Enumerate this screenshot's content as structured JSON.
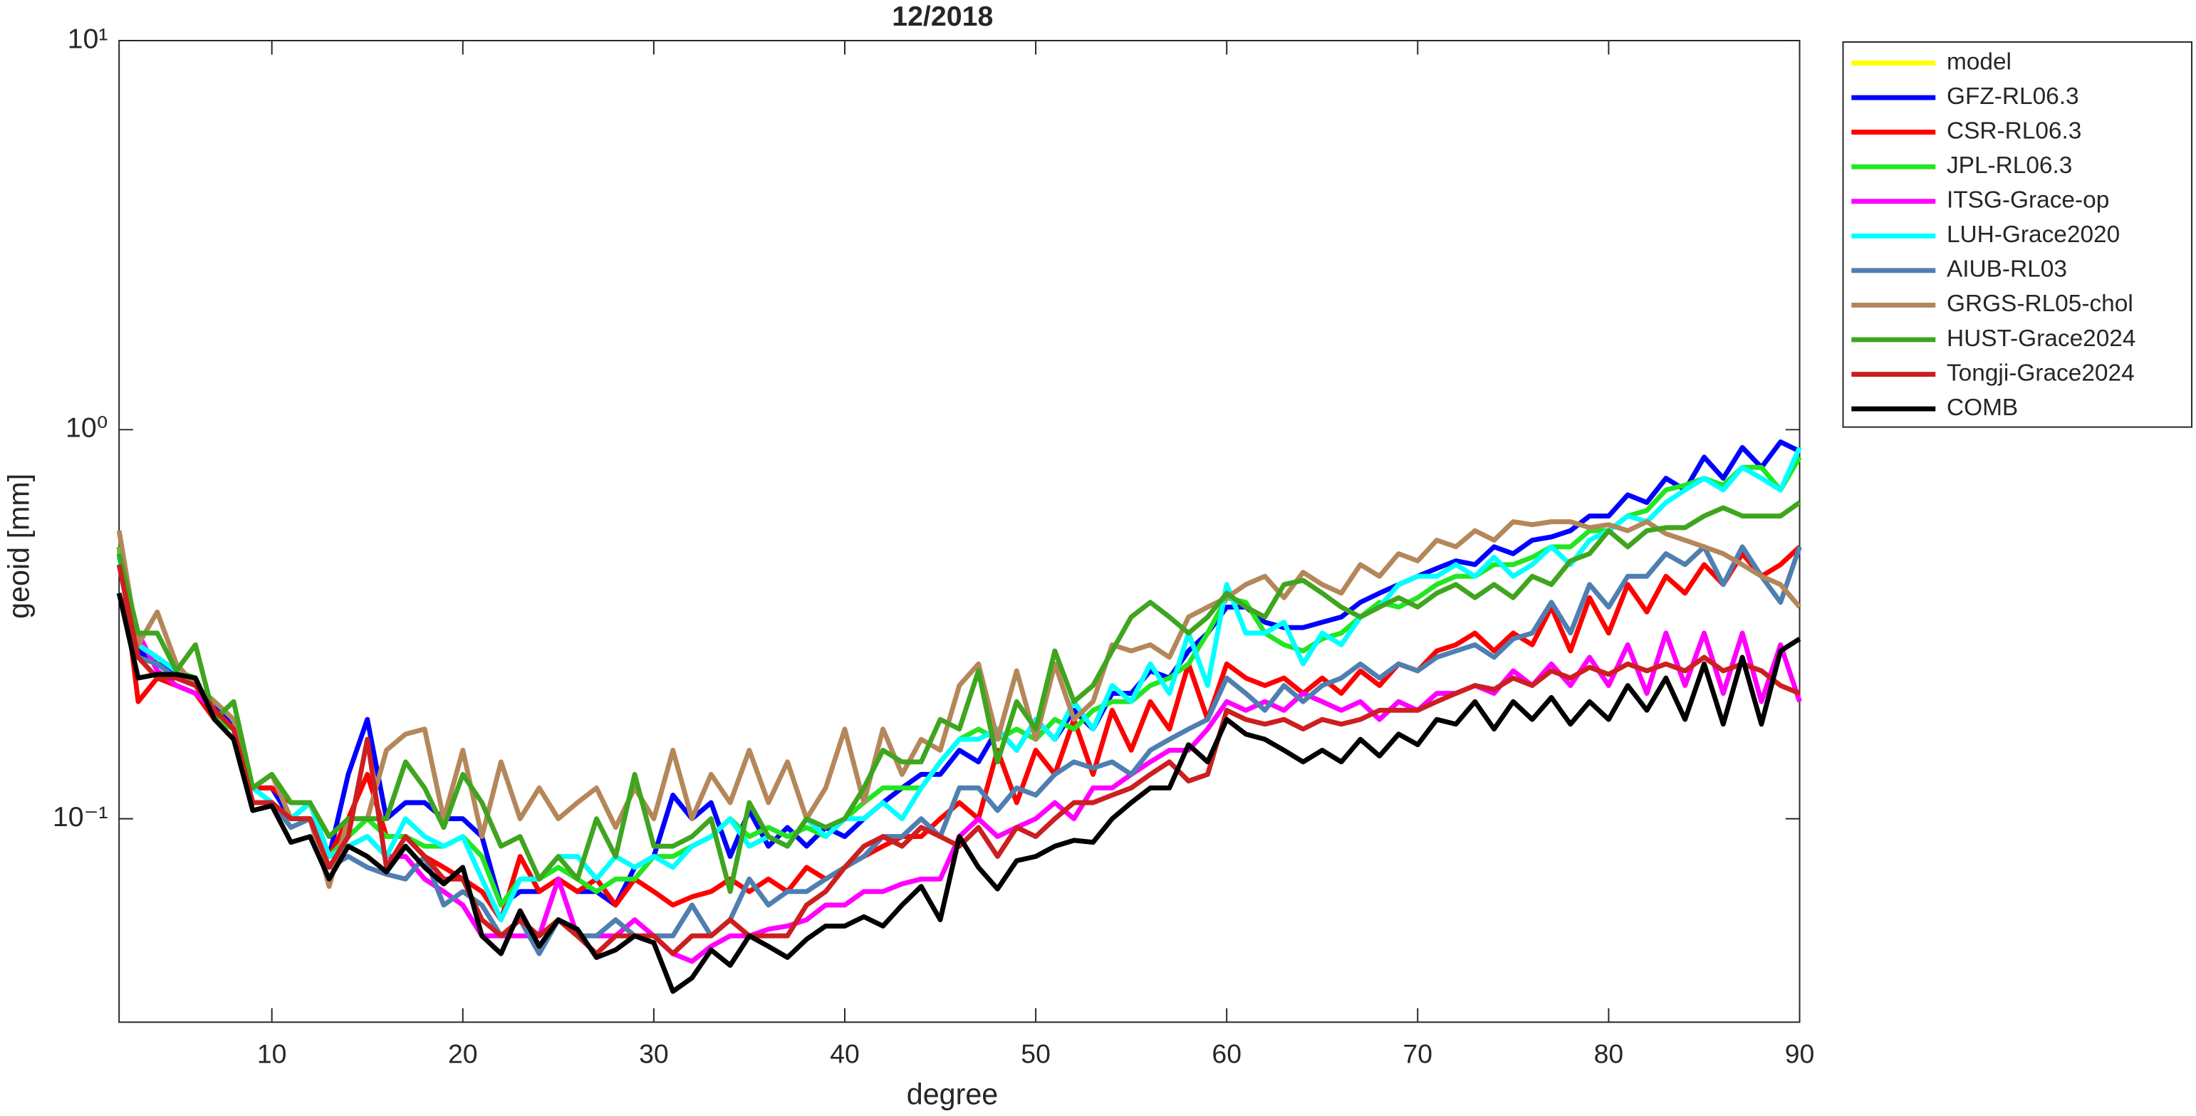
{
  "chart_data": {
    "type": "line",
    "title": "12/2018",
    "xlabel": "degree",
    "ylabel": "geoid [mm]",
    "ylog": true,
    "legend": "outside-top-right",
    "xlim": [
      2,
      90
    ],
    "xticks": [
      10,
      20,
      30,
      40,
      50,
      60,
      70,
      80,
      90
    ],
    "ylim": [
      0.03,
      10
    ],
    "yticks": [
      {
        "value": 0.1,
        "label": "10⁻¹"
      },
      {
        "value": 1,
        "label": "10⁰"
      },
      {
        "value": 10,
        "label": "10¹"
      }
    ],
    "x": [
      2,
      3,
      4,
      5,
      6,
      7,
      8,
      9,
      10,
      11,
      12,
      13,
      14,
      15,
      16,
      17,
      18,
      19,
      20,
      21,
      22,
      23,
      24,
      25,
      26,
      27,
      28,
      29,
      30,
      31,
      32,
      33,
      34,
      35,
      36,
      37,
      38,
      39,
      40,
      41,
      42,
      43,
      44,
      45,
      46,
      47,
      48,
      49,
      50,
      51,
      52,
      53,
      54,
      55,
      56,
      57,
      58,
      59,
      60,
      61,
      62,
      63,
      64,
      65,
      66,
      67,
      68,
      69,
      70,
      71,
      72,
      73,
      74,
      75,
      76,
      77,
      78,
      79,
      80,
      81,
      82,
      83,
      84,
      85,
      86,
      87,
      88,
      89,
      90
    ],
    "series": [
      {
        "name": "model",
        "color": "#ffff00",
        "values": [
          null,
          null,
          null,
          null,
          null,
          null,
          null,
          null,
          null,
          null,
          null,
          null,
          null,
          null,
          null,
          null,
          null,
          null,
          null,
          null,
          null,
          null,
          null,
          null,
          null,
          null,
          null,
          null,
          null,
          null,
          null,
          null,
          null,
          null,
          null,
          null,
          null,
          null,
          null,
          null,
          null,
          null,
          null,
          null,
          null,
          null,
          null,
          null,
          null,
          null,
          null,
          null,
          null,
          null,
          null,
          null,
          null,
          null,
          null,
          null,
          null,
          null,
          null,
          null,
          null,
          null,
          null,
          null,
          null,
          null,
          null,
          null,
          null,
          null,
          null,
          null,
          null,
          null,
          null,
          null,
          null,
          null,
          null,
          null,
          null,
          null,
          null,
          null,
          null
        ]
      },
      {
        "name": "GFZ-RL06.3",
        "color": "#0000ff",
        "values": [
          0.48,
          0.27,
          0.25,
          0.24,
          0.22,
          0.2,
          0.17,
          0.12,
          0.12,
          0.1,
          0.11,
          0.08,
          0.13,
          0.18,
          0.1,
          0.11,
          0.11,
          0.1,
          0.1,
          0.09,
          0.06,
          0.065,
          0.065,
          0.07,
          0.065,
          0.065,
          0.06,
          0.075,
          0.08,
          0.115,
          0.1,
          0.11,
          0.08,
          0.105,
          0.085,
          0.095,
          0.085,
          0.095,
          0.09,
          0.1,
          0.11,
          0.12,
          0.13,
          0.13,
          0.15,
          0.14,
          0.17,
          0.15,
          0.18,
          0.16,
          0.19,
          0.17,
          0.21,
          0.21,
          0.24,
          0.23,
          0.27,
          0.3,
          0.35,
          0.35,
          0.32,
          0.31,
          0.31,
          0.32,
          0.33,
          0.36,
          0.38,
          0.4,
          0.42,
          0.44,
          0.46,
          0.45,
          0.5,
          0.48,
          0.52,
          0.53,
          0.55,
          0.6,
          0.6,
          0.68,
          0.65,
          0.75,
          0.7,
          0.85,
          0.75,
          0.9,
          0.8,
          0.93,
          0.88
        ]
      },
      {
        "name": "CSR-RL06.3",
        "color": "#ff0000",
        "values": [
          0.5,
          0.2,
          0.23,
          0.22,
          0.21,
          0.18,
          0.17,
          0.12,
          0.12,
          0.11,
          0.11,
          0.08,
          0.1,
          0.13,
          0.09,
          0.09,
          0.08,
          0.075,
          0.07,
          0.065,
          0.055,
          0.08,
          0.065,
          0.07,
          0.065,
          0.07,
          0.06,
          0.07,
          0.065,
          0.06,
          0.063,
          0.065,
          0.07,
          0.065,
          0.07,
          0.065,
          0.075,
          0.07,
          0.075,
          0.08,
          0.085,
          0.09,
          0.09,
          0.1,
          0.11,
          0.1,
          0.15,
          0.11,
          0.15,
          0.13,
          0.18,
          0.13,
          0.19,
          0.15,
          0.2,
          0.17,
          0.25,
          0.18,
          0.25,
          0.23,
          0.22,
          0.23,
          0.21,
          0.23,
          0.21,
          0.24,
          0.22,
          0.25,
          0.24,
          0.27,
          0.28,
          0.3,
          0.27,
          0.3,
          0.28,
          0.35,
          0.27,
          0.37,
          0.3,
          0.4,
          0.34,
          0.42,
          0.38,
          0.45,
          0.4,
          0.48,
          0.42,
          0.45,
          0.5
        ]
      },
      {
        "name": "JPL-RL06.3",
        "color": "#22e622",
        "values": [
          0.5,
          0.28,
          0.26,
          0.24,
          0.23,
          0.18,
          0.17,
          0.12,
          0.11,
          0.1,
          0.11,
          0.08,
          0.09,
          0.1,
          0.09,
          0.09,
          0.085,
          0.085,
          0.09,
          0.08,
          0.06,
          0.07,
          0.07,
          0.075,
          0.07,
          0.065,
          0.07,
          0.07,
          0.08,
          0.08,
          0.085,
          0.09,
          0.1,
          0.09,
          0.095,
          0.09,
          0.095,
          0.09,
          0.1,
          0.11,
          0.12,
          0.12,
          0.12,
          0.14,
          0.16,
          0.17,
          0.16,
          0.17,
          0.16,
          0.18,
          0.17,
          0.19,
          0.2,
          0.2,
          0.22,
          0.23,
          0.25,
          0.3,
          0.37,
          0.36,
          0.3,
          0.28,
          0.27,
          0.29,
          0.3,
          0.33,
          0.36,
          0.35,
          0.37,
          0.4,
          0.42,
          0.42,
          0.45,
          0.45,
          0.47,
          0.5,
          0.5,
          0.55,
          0.55,
          0.6,
          0.62,
          0.7,
          0.72,
          0.75,
          0.72,
          0.8,
          0.8,
          0.7,
          0.85
        ]
      },
      {
        "name": "ITSG-Grace-op",
        "color": "#ff00ff",
        "values": [
          0.45,
          0.3,
          0.24,
          0.22,
          0.21,
          0.19,
          0.17,
          0.11,
          0.11,
          0.1,
          0.1,
          0.08,
          0.085,
          0.09,
          0.08,
          0.08,
          0.07,
          0.065,
          0.06,
          0.05,
          0.05,
          0.05,
          0.05,
          0.07,
          0.05,
          0.05,
          0.05,
          0.055,
          0.05,
          0.045,
          0.043,
          0.047,
          0.05,
          0.05,
          0.052,
          0.053,
          0.055,
          0.06,
          0.06,
          0.065,
          0.065,
          0.068,
          0.07,
          0.07,
          0.09,
          0.1,
          0.09,
          0.095,
          0.1,
          0.11,
          0.1,
          0.12,
          0.12,
          0.13,
          0.14,
          0.15,
          0.15,
          0.17,
          0.2,
          0.19,
          0.2,
          0.19,
          0.21,
          0.2,
          0.19,
          0.2,
          0.18,
          0.2,
          0.19,
          0.21,
          0.21,
          0.22,
          0.21,
          0.24,
          0.22,
          0.25,
          0.22,
          0.26,
          0.22,
          0.28,
          0.21,
          0.3,
          0.22,
          0.3,
          0.21,
          0.3,
          0.2,
          0.28,
          0.2
        ]
      },
      {
        "name": "LUH-Grace2020",
        "color": "#00ffff",
        "values": [
          0.47,
          0.28,
          0.26,
          0.24,
          0.22,
          0.2,
          0.18,
          0.12,
          0.11,
          0.1,
          0.11,
          0.08,
          0.085,
          0.09,
          0.08,
          0.1,
          0.09,
          0.085,
          0.09,
          0.07,
          0.055,
          0.07,
          0.07,
          0.08,
          0.08,
          0.07,
          0.08,
          0.075,
          0.08,
          0.075,
          0.085,
          0.09,
          0.1,
          0.085,
          0.09,
          0.085,
          0.1,
          0.09,
          0.1,
          0.1,
          0.11,
          0.1,
          0.12,
          0.14,
          0.16,
          0.16,
          0.17,
          0.15,
          0.18,
          0.16,
          0.2,
          0.17,
          0.22,
          0.2,
          0.25,
          0.21,
          0.3,
          0.22,
          0.4,
          0.3,
          0.3,
          0.32,
          0.25,
          0.3,
          0.28,
          0.33,
          0.35,
          0.4,
          0.42,
          0.42,
          0.45,
          0.42,
          0.47,
          0.42,
          0.45,
          0.5,
          0.45,
          0.52,
          0.55,
          0.6,
          0.58,
          0.65,
          0.7,
          0.75,
          0.7,
          0.8,
          0.75,
          0.7,
          0.9
        ]
      },
      {
        "name": "AIUB-RL03",
        "color": "#4f7fb0",
        "values": [
          0.45,
          0.26,
          0.25,
          0.23,
          0.22,
          0.19,
          0.17,
          0.11,
          0.11,
          0.095,
          0.1,
          0.075,
          0.08,
          0.075,
          0.072,
          0.07,
          0.08,
          0.06,
          0.065,
          0.06,
          0.05,
          0.055,
          0.045,
          0.055,
          0.05,
          0.05,
          0.055,
          0.05,
          0.05,
          0.05,
          0.06,
          0.05,
          0.055,
          0.07,
          0.06,
          0.065,
          0.065,
          0.07,
          0.075,
          0.08,
          0.09,
          0.09,
          0.1,
          0.09,
          0.12,
          0.12,
          0.105,
          0.12,
          0.115,
          0.13,
          0.14,
          0.135,
          0.14,
          0.13,
          0.15,
          0.16,
          0.17,
          0.18,
          0.23,
          0.21,
          0.19,
          0.22,
          0.2,
          0.22,
          0.23,
          0.25,
          0.23,
          0.25,
          0.24,
          0.26,
          0.27,
          0.28,
          0.26,
          0.29,
          0.3,
          0.36,
          0.3,
          0.4,
          0.35,
          0.42,
          0.42,
          0.48,
          0.45,
          0.5,
          0.4,
          0.5,
          0.42,
          0.36,
          0.5
        ]
      },
      {
        "name": "GRGS-RL05-chol",
        "color": "#b4875a",
        "values": [
          0.55,
          0.28,
          0.34,
          0.25,
          0.22,
          0.2,
          0.18,
          0.12,
          0.13,
          0.1,
          0.1,
          0.067,
          0.1,
          0.1,
          0.15,
          0.165,
          0.17,
          0.1,
          0.15,
          0.09,
          0.14,
          0.1,
          0.12,
          0.1,
          0.11,
          0.12,
          0.095,
          0.12,
          0.1,
          0.15,
          0.1,
          0.13,
          0.11,
          0.15,
          0.11,
          0.14,
          0.1,
          0.12,
          0.17,
          0.11,
          0.17,
          0.13,
          0.16,
          0.15,
          0.22,
          0.25,
          0.16,
          0.24,
          0.16,
          0.25,
          0.18,
          0.2,
          0.28,
          0.27,
          0.28,
          0.26,
          0.33,
          0.35,
          0.37,
          0.4,
          0.42,
          0.37,
          0.43,
          0.4,
          0.38,
          0.45,
          0.42,
          0.48,
          0.46,
          0.52,
          0.5,
          0.55,
          0.52,
          0.58,
          0.57,
          0.58,
          0.58,
          0.56,
          0.57,
          0.55,
          0.58,
          0.54,
          0.52,
          0.5,
          0.48,
          0.45,
          0.42,
          0.4,
          0.35
        ]
      },
      {
        "name": "HUST-Grace2024",
        "color": "#3fa51f",
        "values": [
          0.48,
          0.3,
          0.3,
          0.24,
          0.28,
          0.18,
          0.2,
          0.12,
          0.13,
          0.11,
          0.11,
          0.09,
          0.1,
          0.1,
          0.1,
          0.14,
          0.12,
          0.095,
          0.13,
          0.11,
          0.085,
          0.09,
          0.07,
          0.08,
          0.07,
          0.1,
          0.08,
          0.13,
          0.085,
          0.085,
          0.09,
          0.1,
          0.065,
          0.11,
          0.09,
          0.085,
          0.1,
          0.095,
          0.1,
          0.12,
          0.15,
          0.14,
          0.14,
          0.18,
          0.17,
          0.24,
          0.14,
          0.2,
          0.17,
          0.27,
          0.2,
          0.22,
          0.27,
          0.33,
          0.36,
          0.33,
          0.3,
          0.33,
          0.38,
          0.35,
          0.33,
          0.4,
          0.41,
          0.38,
          0.35,
          0.33,
          0.35,
          0.37,
          0.35,
          0.38,
          0.4,
          0.37,
          0.4,
          0.37,
          0.42,
          0.4,
          0.46,
          0.48,
          0.55,
          0.5,
          0.55,
          0.56,
          0.56,
          0.6,
          0.63,
          0.6,
          0.6,
          0.6,
          0.65
        ]
      },
      {
        "name": "Tongji-Grace2024",
        "color": "#cc1f1f",
        "values": [
          0.45,
          0.26,
          0.23,
          0.23,
          0.22,
          0.19,
          0.17,
          0.11,
          0.11,
          0.1,
          0.1,
          0.075,
          0.09,
          0.16,
          0.075,
          0.09,
          0.08,
          0.07,
          0.07,
          0.055,
          0.05,
          0.055,
          0.05,
          0.055,
          0.05,
          0.045,
          0.05,
          0.05,
          0.05,
          0.045,
          0.05,
          0.05,
          0.055,
          0.05,
          0.05,
          0.05,
          0.06,
          0.065,
          0.075,
          0.085,
          0.09,
          0.085,
          0.095,
          0.09,
          0.085,
          0.095,
          0.08,
          0.095,
          0.09,
          0.1,
          0.11,
          0.11,
          0.115,
          0.12,
          0.13,
          0.14,
          0.125,
          0.13,
          0.19,
          0.18,
          0.175,
          0.18,
          0.17,
          0.18,
          0.175,
          0.18,
          0.19,
          0.19,
          0.19,
          0.2,
          0.21,
          0.22,
          0.215,
          0.23,
          0.22,
          0.24,
          0.23,
          0.245,
          0.235,
          0.25,
          0.24,
          0.25,
          0.24,
          0.26,
          0.24,
          0.25,
          0.24,
          0.22,
          0.21
        ]
      },
      {
        "name": "COMB",
        "color": "#000000",
        "values": [
          0.38,
          0.23,
          0.235,
          0.235,
          0.23,
          0.18,
          0.16,
          0.105,
          0.108,
          0.087,
          0.09,
          0.07,
          0.085,
          0.08,
          0.073,
          0.085,
          0.075,
          0.068,
          0.075,
          0.05,
          0.045,
          0.058,
          0.047,
          0.055,
          0.052,
          0.044,
          0.046,
          0.05,
          0.048,
          0.036,
          0.039,
          0.046,
          0.042,
          0.05,
          0.047,
          0.044,
          0.049,
          0.053,
          0.053,
          0.056,
          0.053,
          0.06,
          0.067,
          0.055,
          0.09,
          0.075,
          0.066,
          0.078,
          0.08,
          0.085,
          0.088,
          0.087,
          0.1,
          0.11,
          0.12,
          0.12,
          0.155,
          0.14,
          0.18,
          0.165,
          0.16,
          0.15,
          0.14,
          0.15,
          0.14,
          0.16,
          0.145,
          0.165,
          0.155,
          0.18,
          0.175,
          0.2,
          0.17,
          0.2,
          0.18,
          0.205,
          0.175,
          0.2,
          0.18,
          0.22,
          0.19,
          0.23,
          0.18,
          0.25,
          0.175,
          0.26,
          0.175,
          0.27,
          0.29
        ]
      }
    ]
  }
}
